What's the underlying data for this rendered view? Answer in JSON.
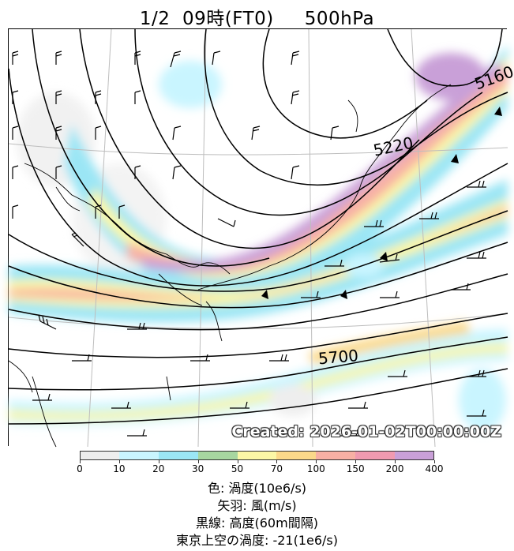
{
  "title": "1/2  09時(FT0)     500hPa",
  "map": {
    "contour_labels": [
      "5160",
      "5220",
      "5700"
    ],
    "created": "Created: 2026-01-02T00:00:00Z"
  },
  "colorbar": {
    "levels": [
      "0",
      "10",
      "20",
      "30",
      "50",
      "70",
      "100",
      "150",
      "200",
      "400"
    ],
    "colors": [
      "#eeeeee",
      "#c9f5ff",
      "#9be6f5",
      "#a7d6a0",
      "#fbf7a6",
      "#fbd98a",
      "#f8b0a4",
      "#f09ab0",
      "#c9a0d8"
    ]
  },
  "legend": {
    "line1": "色: 渦度(10e6/s)",
    "line2": "矢羽: 風(m/s)",
    "line3": "黒線: 高度(60m間隔)",
    "line4": "東京上空の渦度: -21(1e6/s)"
  }
}
